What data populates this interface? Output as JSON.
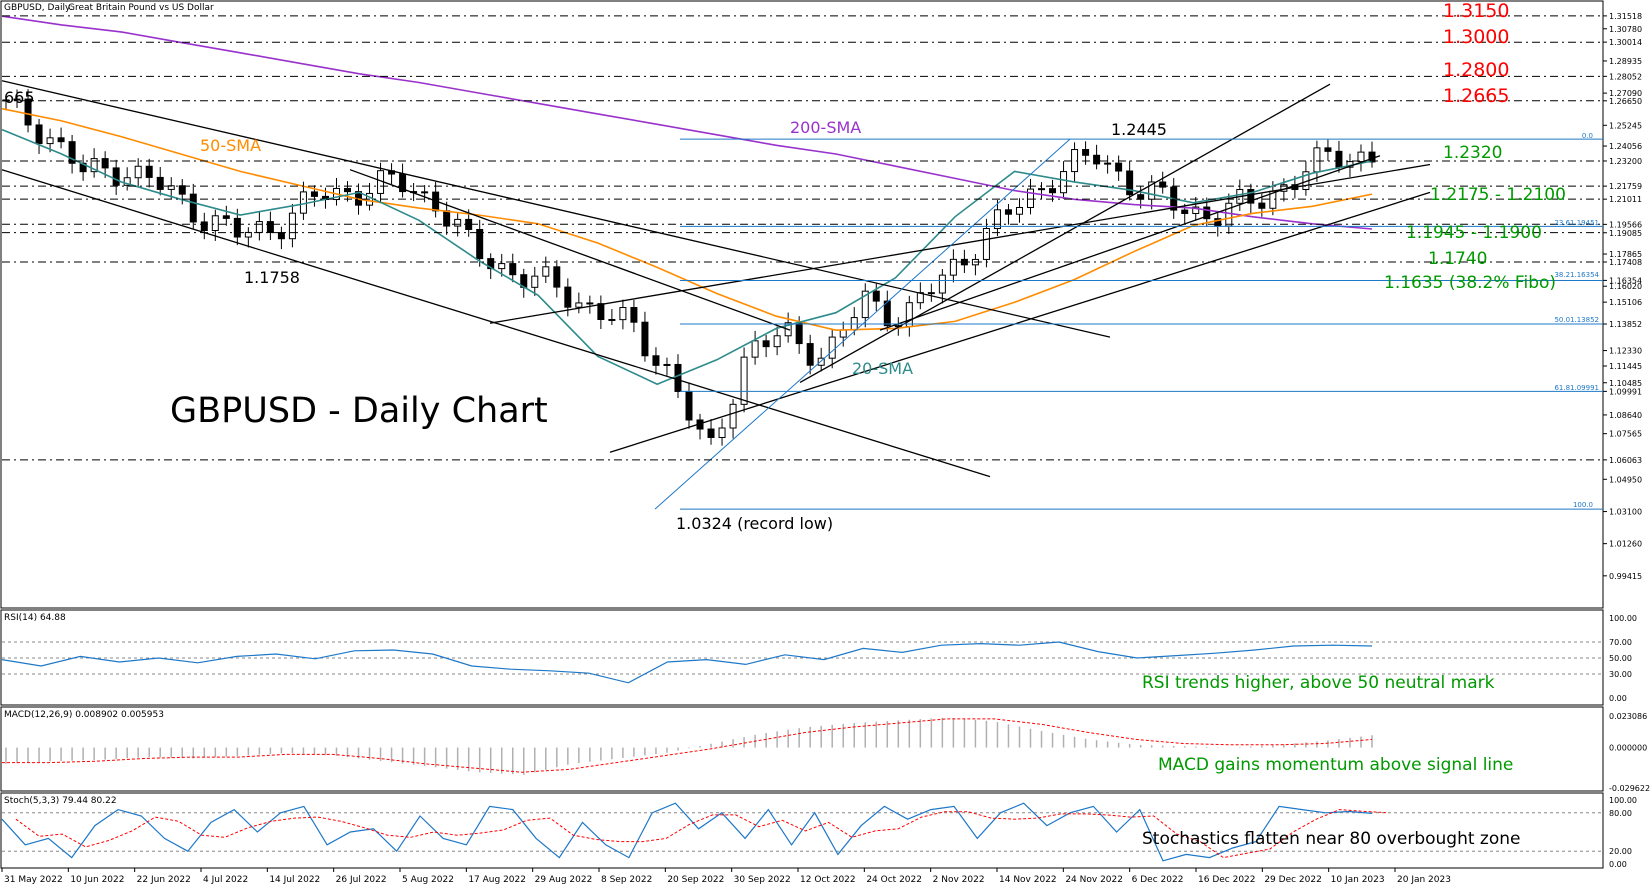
{
  "header": {
    "symbol_title": "GBPUSD, Daily:",
    "symbol_desc": "Great Britain Pound vs US Dollar"
  },
  "main_title": "GBPUSD - Daily Chart",
  "colors": {
    "candle_up": "#000000",
    "candle_down": "#000000",
    "resistance_red": "#ff0000",
    "support_green": "#009900",
    "sma200": "#9932cc",
    "sma50": "#ff8c00",
    "sma20": "#2e8b8b",
    "fibo": "#1e78c8",
    "indicator_line": "#1e78c8"
  },
  "chart_data": [
    {
      "type": "candlestick",
      "panel": "price",
      "title": "GBPUSD, Daily: Great Britain Pound vs US Dollar",
      "ylim": [
        0.978,
        1.322
      ],
      "x_tick_labels": [
        "31 May 2022",
        "10 Jun 2022",
        "22 Jun 2022",
        "4 Jul 2022",
        "14 Jul 2022",
        "26 Jul 2022",
        "5 Aug 2022",
        "17 Aug 2022",
        "29 Aug 2022",
        "8 Sep 2022",
        "20 Sep 2022",
        "30 Sep 2022",
        "12 Oct 2022",
        "24 Oct 2022",
        "2 Nov 2022",
        "14 Nov 2022",
        "24 Nov 2022",
        "6 Dec 2022",
        "16 Dec 2022",
        "29 Dec 2022",
        "10 Jan 2023",
        "20 Jan 2023"
      ],
      "y_tick_labels": [
        "1.31518",
        "1.30780",
        "1.30014",
        "1.28935",
        "1.28052",
        "1.27090",
        "1.26650",
        "1.25245",
        "1.24056",
        "1.23200",
        "1.21759",
        "1.21011",
        "1.19566",
        "1.19085",
        "1.17865",
        "1.17408",
        "1.16354",
        "1.16020",
        "1.15106",
        "1.13852",
        "1.12330",
        "1.11445",
        "1.10485",
        "1.09991",
        "1.08640",
        "1.07565",
        "1.06063",
        "1.04950",
        "1.03100",
        "1.01260",
        "0.99415"
      ],
      "series": [
        {
          "name": "SMA-200",
          "label": "200-SMA",
          "values": [
            1.315,
            1.31,
            1.306,
            1.3,
            1.294,
            1.288,
            1.282,
            1.277,
            1.271,
            1.265,
            1.259,
            1.253,
            1.247,
            1.241,
            1.236,
            1.229,
            1.222,
            1.215,
            1.21,
            1.207,
            1.205,
            1.2,
            1.196,
            1.193
          ]
        },
        {
          "name": "SMA-50",
          "label": "50-SMA",
          "values": [
            1.262,
            1.255,
            1.246,
            1.236,
            1.226,
            1.218,
            1.21,
            1.205,
            1.201,
            1.196,
            1.185,
            1.171,
            1.156,
            1.143,
            1.135,
            1.136,
            1.14,
            1.151,
            1.164,
            1.18,
            1.195,
            1.202,
            1.206,
            1.213
          ]
        },
        {
          "name": "SMA-20",
          "label": "20-SMA",
          "values": [
            1.25,
            1.236,
            1.22,
            1.21,
            1.201,
            1.207,
            1.214,
            1.198,
            1.175,
            1.155,
            1.12,
            1.104,
            1.118,
            1.136,
            1.145,
            1.165,
            1.2,
            1.226,
            1.22,
            1.215,
            1.208,
            1.214,
            1.225,
            1.232
          ]
        }
      ],
      "price_close": [
        1.263,
        1.249,
        1.225,
        1.228,
        1.217,
        1.201,
        1.189,
        1.196,
        1.212,
        1.215,
        1.22,
        1.209,
        1.18,
        1.168,
        1.16,
        1.148,
        1.137,
        1.111,
        1.062,
        1.124,
        1.132,
        1.12,
        1.152,
        1.142,
        1.165,
        1.188,
        1.208,
        1.226,
        1.235,
        1.215,
        1.207,
        1.2,
        1.21,
        1.22,
        1.237,
        1.233
      ]
    },
    {
      "type": "line",
      "panel": "RSI",
      "header": "RSI(14) 64.88",
      "ylim": [
        0,
        100
      ],
      "y_tick_labels": [
        "100.00",
        "70.00",
        "50.00",
        "30.00",
        "0.00"
      ],
      "values": [
        48,
        40,
        52,
        45,
        50,
        44,
        52,
        55,
        49,
        59,
        60,
        55,
        40,
        36,
        34,
        31,
        19,
        45,
        48,
        42,
        54,
        48,
        62,
        57,
        66,
        68,
        66,
        70,
        58,
        50,
        53,
        56,
        60,
        65,
        66,
        65
      ]
    },
    {
      "type": "bar",
      "panel": "MACD",
      "header": "MACD(12,26,9) 0.008902 0.005953",
      "ylim": [
        -0.0296,
        0.0231
      ],
      "y_tick_labels": [
        "0.023086",
        "0.000000",
        "-0.029622"
      ],
      "values": [
        -0.012,
        -0.01,
        -0.009,
        -0.007,
        -0.008,
        -0.006,
        -0.004,
        -0.006,
        -0.01,
        -0.014,
        -0.018,
        -0.02,
        -0.012,
        -0.008,
        -0.004,
        0.003,
        0.01,
        0.015,
        0.018,
        0.02,
        0.022,
        0.019,
        0.012,
        0.006,
        0.002,
        0.001,
        0.0,
        0.002,
        0.005,
        0.009
      ],
      "signal": [
        -0.011,
        -0.011,
        -0.01,
        -0.008,
        -0.007,
        -0.007,
        -0.005,
        -0.005,
        -0.008,
        -0.012,
        -0.015,
        -0.018,
        -0.016,
        -0.011,
        -0.006,
        -0.001,
        0.005,
        0.011,
        0.015,
        0.018,
        0.021,
        0.021,
        0.017,
        0.011,
        0.006,
        0.003,
        0.002,
        0.002,
        0.003,
        0.006
      ]
    },
    {
      "type": "line",
      "panel": "Stochastic",
      "header": "Stoch(5,3,3) 79.44 80.22",
      "ylim": [
        0,
        100
      ],
      "y_tick_labels": [
        "100.00",
        "80.00",
        "20.00",
        "0.00"
      ],
      "values": [
        70,
        30,
        40,
        10,
        60,
        85,
        75,
        40,
        20,
        65,
        85,
        50,
        80,
        90,
        30,
        50,
        55,
        20,
        75,
        40,
        30,
        90,
        85,
        40,
        10,
        65,
        30,
        10,
        80,
        95,
        55,
        80,
        40,
        85,
        30,
        80,
        15,
        60,
        90,
        70,
        85,
        90,
        40,
        80,
        95,
        60,
        80,
        90,
        50,
        85,
        5,
        15,
        10,
        25,
        35,
        90,
        85,
        80,
        82,
        79
      ]
    }
  ],
  "annotations": {
    "levels_right": [
      "1.3150",
      "1.3000",
      "1.2800",
      "1.2665"
    ],
    "levels_support": [
      "1.2320",
      "1.2175 - 1.2100",
      "1.1945 - 1.1900",
      "1.1740",
      "1.1635 (38.2% Fibo)"
    ],
    "price_labels": [
      "665",
      "1.1758",
      "1.2445",
      "1.0324 (record low)"
    ],
    "sma_labels": [
      "200-SMA",
      "50-SMA",
      "20-SMA"
    ],
    "fibo_labels": [
      "0.0",
      "23.61.19451",
      "38.21.16354",
      "50.01.13852",
      "61.81.09991",
      "100.0"
    ],
    "rsi_note": "RSI trends higher, above 50 neutral mark",
    "macd_note": "MACD gains momentum above signal line",
    "stoch_note": "Stochastics flatten near 80 overbought zone"
  }
}
